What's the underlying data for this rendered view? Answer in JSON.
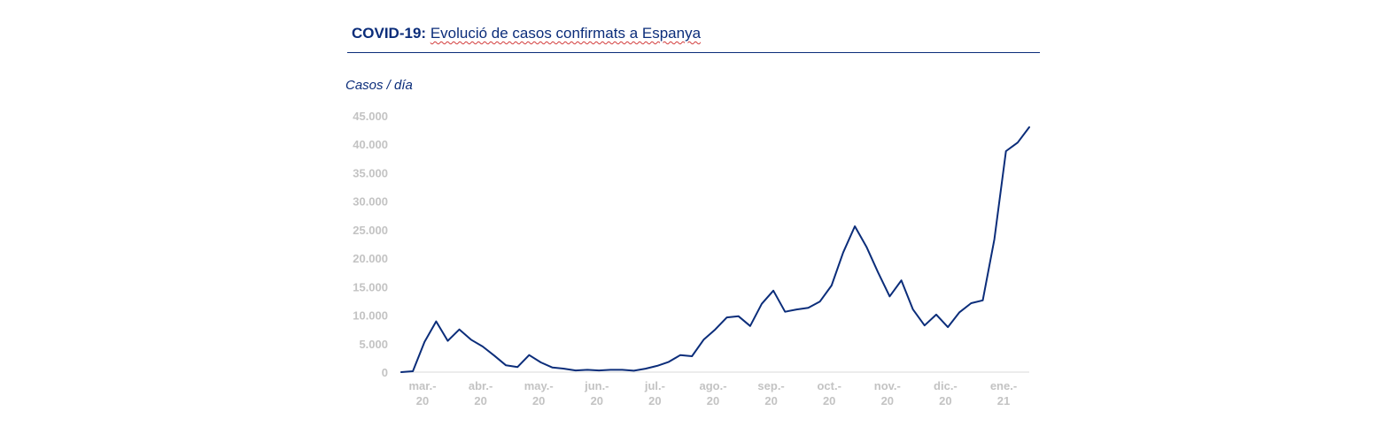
{
  "header": {
    "title_bold": "COVID-19:",
    "title_rest": "Evolució de casos confirmats a Espanya"
  },
  "colors": {
    "line": "#0b2d7a",
    "axis_text": "#c3c3c3",
    "title": "#0b2d7a"
  },
  "chart_data": {
    "type": "line",
    "title": "COVID-19: Evolució de casos confirmats a Espanya",
    "ylabel": "Casos / día",
    "xlabel": "",
    "ylim": [
      0,
      45000
    ],
    "yticks": [
      0,
      5000,
      10000,
      15000,
      20000,
      25000,
      30000,
      35000,
      40000,
      45000
    ],
    "ytick_labels": [
      "0",
      "5.000",
      "10.000",
      "15.000",
      "20.000",
      "25.000",
      "30.000",
      "35.000",
      "40.000",
      "45.000"
    ],
    "xtick_labels": [
      [
        "mar.-",
        "20"
      ],
      [
        "abr.-",
        "20"
      ],
      [
        "may.-",
        "20"
      ],
      [
        "jun.-",
        "20"
      ],
      [
        "jul.-",
        "20"
      ],
      [
        "ago.-",
        "20"
      ],
      [
        "sep.-",
        "20"
      ],
      [
        "oct.-",
        "20"
      ],
      [
        "nov.-",
        "20"
      ],
      [
        "dic.-",
        "20"
      ],
      [
        "ene.-",
        "21"
      ]
    ],
    "grid": false,
    "series": [
      {
        "values": [
          0,
          150,
          5300,
          8900,
          5500,
          7500,
          5700,
          4500,
          2900,
          1200,
          900,
          3000,
          1700,
          800,
          600,
          300,
          400,
          300,
          400,
          400,
          250,
          600,
          1100,
          1800,
          3000,
          2800,
          5700,
          7500,
          9600,
          9800,
          8100,
          12000,
          14300,
          10600,
          11000,
          11300,
          12400,
          15200,
          21000,
          25600,
          22000,
          17500,
          13300,
          16100,
          11000,
          8200,
          10100,
          7900,
          10500,
          12100,
          12600,
          23300,
          38800,
          40300,
          43000
        ]
      }
    ]
  }
}
